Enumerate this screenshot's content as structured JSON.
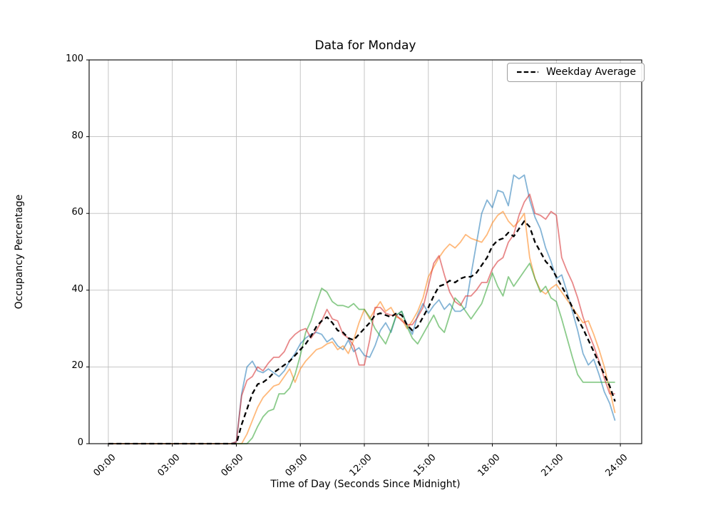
{
  "figure": {
    "background": "#ffffff"
  },
  "chart_data": {
    "type": "line",
    "title": "Data for Monday",
    "xlabel": "Time of Day (Seconds Since Midnight)",
    "ylabel": "Occupancy Percentage",
    "xlim": [
      -0.9,
      25.0
    ],
    "ylim": [
      0,
      100
    ],
    "grid": true,
    "grid_color": "#bfbfbf",
    "legend": {
      "label": "Weekday Average",
      "position": "upper right"
    },
    "xticks": {
      "positions": [
        0,
        3,
        6,
        9,
        12,
        15,
        18,
        21,
        24
      ],
      "labels": [
        "00:00",
        "03:00",
        "06:00",
        "09:00",
        "12:00",
        "15:00",
        "18:00",
        "21:00",
        "24:00"
      ]
    },
    "yticks": [
      0,
      20,
      40,
      60,
      80,
      100
    ],
    "x_unit": "hours since midnight",
    "x": [
      0,
      0.25,
      0.5,
      0.75,
      1,
      1.25,
      1.5,
      1.75,
      2,
      2.25,
      2.5,
      2.75,
      3,
      3.25,
      3.5,
      3.75,
      4,
      4.25,
      4.5,
      4.75,
      5,
      5.25,
      5.5,
      5.75,
      6,
      6.25,
      6.5,
      6.75,
      7,
      7.25,
      7.5,
      7.75,
      8,
      8.25,
      8.5,
      8.75,
      9,
      9.25,
      9.5,
      9.75,
      10,
      10.25,
      10.5,
      10.75,
      11,
      11.25,
      11.5,
      11.75,
      12,
      12.25,
      12.5,
      12.75,
      13,
      13.25,
      13.5,
      13.75,
      14,
      14.25,
      14.5,
      14.75,
      15,
      15.25,
      15.5,
      15.75,
      16,
      16.25,
      16.5,
      16.75,
      17,
      17.25,
      17.5,
      17.75,
      18,
      18.25,
      18.5,
      18.75,
      19,
      19.25,
      19.5,
      19.75,
      20,
      20.25,
      20.5,
      20.75,
      21,
      21.25,
      21.5,
      21.75,
      22,
      22.25,
      22.5,
      22.75,
      23,
      23.25,
      23.5,
      23.75
    ],
    "series": [
      {
        "id": "line-1",
        "color": "#1f77b4",
        "opacity": 0.55,
        "width": 1.8,
        "dashed": false,
        "values": [
          0,
          0,
          0,
          0,
          0,
          0,
          0,
          0,
          0,
          0,
          0,
          0,
          0,
          0,
          0,
          0,
          0,
          0,
          0,
          0,
          0,
          0,
          0,
          0,
          0.5,
          13,
          20,
          21.5,
          19,
          18.5,
          19.5,
          18.5,
          17.5,
          19,
          21.5,
          23.5,
          26,
          27.5,
          28.5,
          29,
          28.5,
          26.5,
          27.5,
          25.5,
          24.5,
          27,
          24,
          25,
          23,
          22.5,
          25.5,
          29.5,
          31.5,
          29,
          33.5,
          34.5,
          31,
          28.5,
          33.5,
          36.5,
          34,
          36,
          37.5,
          35,
          36.5,
          34.5,
          34.5,
          35.5,
          44,
          52,
          60,
          63.5,
          61.5,
          66,
          65.5,
          62,
          70,
          69,
          70,
          63.5,
          59,
          56,
          51,
          47.5,
          43,
          44,
          39.5,
          34.5,
          29.5,
          23.5,
          20.5,
          22,
          18,
          13.5,
          10.5,
          6
        ]
      },
      {
        "id": "line-2",
        "color": "#ff7f0e",
        "opacity": 0.55,
        "width": 1.8,
        "dashed": false,
        "values": [
          0,
          0,
          0,
          0,
          0,
          0,
          0,
          0,
          0,
          0,
          0,
          0,
          0,
          0,
          0,
          0,
          0,
          0,
          0,
          0,
          0,
          0,
          0,
          0,
          0,
          0,
          2.5,
          6,
          9.5,
          12,
          13.5,
          15,
          15.5,
          17.5,
          19.5,
          16,
          19.5,
          21.5,
          23,
          24.5,
          25,
          26,
          26.5,
          24.5,
          25.5,
          23.5,
          27,
          31.5,
          35,
          32.5,
          35,
          37,
          34.5,
          35.5,
          33,
          32.5,
          30,
          32,
          34.5,
          38,
          43.5,
          46,
          48.5,
          50.5,
          52,
          51,
          52.5,
          54.5,
          53.5,
          53,
          52.5,
          54.5,
          57.5,
          59.5,
          60.5,
          58,
          56.5,
          58,
          60,
          48.5,
          43,
          40,
          39,
          40.5,
          41.5,
          39.5,
          37.5,
          35.5,
          33.5,
          31.5,
          32,
          28.5,
          24.5,
          20,
          14,
          8
        ]
      },
      {
        "id": "line-3",
        "color": "#2ca02c",
        "opacity": 0.55,
        "width": 1.8,
        "dashed": false,
        "values": [
          0,
          0,
          0,
          0,
          0,
          0,
          0,
          0,
          0,
          0,
          0,
          0,
          0,
          0,
          0,
          0,
          0,
          0,
          0,
          0,
          0,
          0,
          0,
          0,
          0,
          0,
          0,
          1.5,
          4.5,
          7,
          8.5,
          9,
          13,
          13,
          14.5,
          18,
          23,
          29,
          32,
          36.5,
          40.5,
          39.5,
          37,
          36,
          36,
          35.5,
          36.5,
          35,
          35,
          33,
          30,
          28,
          26,
          29.5,
          33.5,
          34.5,
          30.5,
          27.5,
          26,
          28.5,
          31,
          33.5,
          30.5,
          29,
          33.5,
          38,
          36.5,
          34.5,
          32.5,
          34.5,
          36.5,
          40.5,
          44.5,
          41,
          38.5,
          43.5,
          41,
          43,
          45,
          47,
          43,
          39.5,
          41,
          38,
          37,
          32.5,
          27.5,
          22.5,
          18,
          16,
          16,
          16,
          16,
          16,
          16,
          16
        ]
      },
      {
        "id": "line-4",
        "color": "#d62728",
        "opacity": 0.55,
        "width": 1.8,
        "dashed": false,
        "values": [
          0,
          0,
          0,
          0,
          0,
          0,
          0,
          0,
          0,
          0,
          0,
          0,
          0,
          0,
          0,
          0,
          0,
          0,
          0,
          0,
          0,
          0,
          0,
          0,
          0.5,
          12.5,
          16.5,
          17.5,
          20,
          19,
          21,
          22.5,
          22.5,
          24,
          27,
          28.5,
          29.5,
          30,
          27.5,
          29.5,
          32,
          35,
          32.5,
          32,
          28.5,
          27.5,
          25.5,
          20.5,
          20.5,
          27,
          35.5,
          35.5,
          34,
          33.5,
          33.5,
          32,
          31,
          31,
          33,
          35.5,
          41,
          47,
          49,
          44,
          39.5,
          37,
          36,
          38.5,
          38.5,
          40,
          42,
          42,
          45.5,
          47.5,
          48.5,
          52.5,
          54.5,
          59.5,
          63,
          65,
          60,
          59.5,
          58.5,
          60.5,
          59.5,
          48.5,
          45,
          42,
          38,
          33,
          29,
          25.5,
          21.5,
          17,
          13,
          13
        ]
      },
      {
        "id": "weekday-average",
        "label": "Weekday Average",
        "color": "#000000",
        "opacity": 1,
        "width": 2.3,
        "dashed": true,
        "values": [
          0,
          0,
          0,
          0,
          0,
          0,
          0,
          0,
          0,
          0,
          0,
          0,
          0,
          0,
          0,
          0,
          0,
          0,
          0,
          0,
          0,
          0,
          0,
          0,
          0,
          5,
          9,
          13,
          15.5,
          16,
          17,
          18.5,
          19.5,
          20.5,
          21.5,
          23,
          24.5,
          26,
          28,
          30.5,
          32,
          33,
          31.5,
          29.5,
          29,
          27.5,
          27,
          28.5,
          30,
          31.5,
          33.5,
          34,
          33.5,
          33,
          34,
          33.5,
          31,
          29.5,
          30.5,
          33,
          35.5,
          38.5,
          41,
          41.5,
          42.5,
          42,
          43,
          43.5,
          43.5,
          44.5,
          46.5,
          48.5,
          51.5,
          53,
          53.5,
          55,
          54,
          56,
          58,
          56.5,
          52.5,
          50,
          47.5,
          46,
          43.5,
          41,
          38.5,
          35.5,
          32.5,
          30,
          27,
          24,
          21,
          18,
          15,
          11
        ]
      }
    ]
  }
}
